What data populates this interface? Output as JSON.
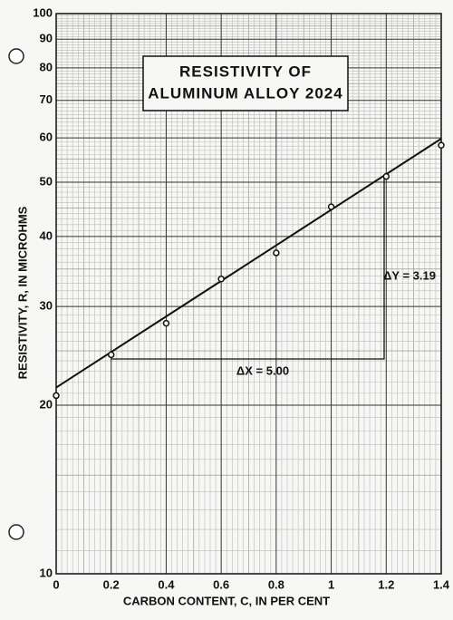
{
  "chart_data": {
    "type": "scatter",
    "title": [
      "RESISTIVITY OF",
      "ALUMINUM ALLOY 2024"
    ],
    "xlabel": "CARBON CONTENT, C, IN PER CENT",
    "ylabel": "RESISTIVITY, R, IN MICROHMS",
    "x": [
      0,
      0.2,
      0.4,
      0.6,
      0.8,
      1.0,
      1.2,
      1.4
    ],
    "values": [
      20.8,
      24.6,
      28,
      33.6,
      37.4,
      45.2,
      51.2,
      58.2
    ],
    "fit_line": {
      "x": [
        0,
        1.4
      ],
      "values": [
        21.5,
        59.8
      ]
    },
    "annotations": [
      "ΔX = 5.00",
      "ΔY = 3.19"
    ],
    "xlim": [
      0,
      1.4
    ],
    "xticks": [
      0,
      0.2,
      0.4,
      0.6,
      0.8,
      1.0,
      1.2,
      1.4
    ],
    "ylim": [
      10,
      100
    ],
    "yticks": [
      10,
      20,
      30,
      40,
      50,
      60,
      70,
      80,
      90,
      100
    ],
    "yscale": "log",
    "grid": true,
    "color": "#111"
  }
}
